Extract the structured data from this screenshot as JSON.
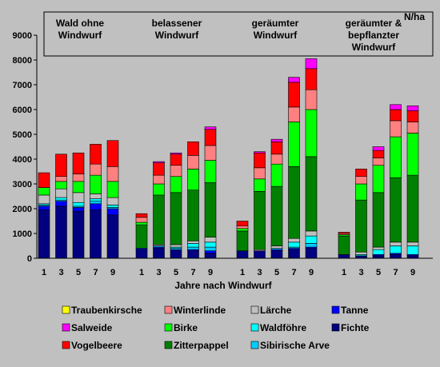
{
  "chart_data": {
    "type": "bar",
    "stacked": true,
    "ylabel": "N/ha",
    "xlabel": "Jahre nach Windwurf",
    "ylim": [
      0,
      9000
    ],
    "yticks": [
      0,
      1000,
      2000,
      3000,
      4000,
      5000,
      6000,
      7000,
      8000,
      9000
    ],
    "grid": false,
    "legend_position": "bottom",
    "groups": [
      {
        "label": [
          "Wald ohne",
          "Windwurf"
        ],
        "categories": [
          "1",
          "3",
          "5",
          "7",
          "9"
        ]
      },
      {
        "label": [
          "belassener",
          "Windwurf"
        ],
        "categories": [
          "1",
          "3",
          "5",
          "7",
          "9"
        ]
      },
      {
        "label": [
          "geräumter",
          "Windwurf"
        ],
        "categories": [
          "1",
          "3",
          "5",
          "7",
          "9"
        ]
      },
      {
        "label": [
          "geräumter &",
          "bepflanzter",
          "Windwurf"
        ],
        "categories": [
          "1",
          "3",
          "5",
          "7",
          "9"
        ]
      }
    ],
    "series": [
      {
        "name": "Fichte",
        "color": "#000080",
        "values": [
          [
            1950,
            2100,
            1900,
            1950,
            1750
          ],
          [
            350,
            400,
            300,
            300,
            200
          ],
          [
            300,
            300,
            300,
            350,
            400
          ],
          [
            150,
            100,
            100,
            150,
            100
          ]
        ]
      },
      {
        "name": "Tanne",
        "color": "#0000ff",
        "values": [
          [
            150,
            200,
            150,
            250,
            250
          ],
          [
            50,
            50,
            50,
            50,
            100
          ],
          [
            0,
            0,
            50,
            50,
            50
          ],
          [
            0,
            0,
            50,
            50,
            50
          ]
        ]
      },
      {
        "name": "Sibirische Arve",
        "color": "#00ccff",
        "values": [
          [
            50,
            50,
            50,
            100,
            50
          ],
          [
            0,
            50,
            50,
            100,
            150
          ],
          [
            0,
            0,
            50,
            50,
            150
          ],
          [
            0,
            0,
            0,
            0,
            0
          ]
        ]
      },
      {
        "name": "Waldföhre",
        "color": "#00ffff",
        "values": [
          [
            50,
            100,
            150,
            100,
            100
          ],
          [
            0,
            0,
            50,
            150,
            200
          ],
          [
            0,
            0,
            0,
            200,
            300
          ],
          [
            0,
            50,
            200,
            300,
            350
          ]
        ]
      },
      {
        "name": "Lärche",
        "color": "#c0c0c0",
        "values": [
          [
            350,
            350,
            400,
            200,
            300
          ],
          [
            0,
            50,
            100,
            100,
            200
          ],
          [
            0,
            50,
            100,
            150,
            200
          ],
          [
            0,
            100,
            100,
            150,
            150
          ]
        ]
      },
      {
        "name": "Zitterpappel",
        "color": "#008000",
        "values": [
          [
            0,
            0,
            0,
            0,
            0
          ],
          [
            950,
            2000,
            2100,
            2050,
            2200
          ],
          [
            800,
            2350,
            2400,
            2900,
            3000
          ],
          [
            750,
            2100,
            2200,
            2600,
            2700
          ]
        ]
      },
      {
        "name": "Birke",
        "color": "#00ff00",
        "values": [
          [
            300,
            300,
            450,
            750,
            650
          ],
          [
            100,
            450,
            650,
            850,
            900
          ],
          [
            100,
            500,
            900,
            1800,
            1900
          ],
          [
            50,
            650,
            1100,
            1650,
            1700
          ]
        ]
      },
      {
        "name": "Winterlinde",
        "color": "#ff8080",
        "values": [
          [
            0,
            200,
            300,
            450,
            600
          ],
          [
            200,
            350,
            450,
            550,
            600
          ],
          [
            100,
            450,
            400,
            600,
            800
          ],
          [
            50,
            300,
            300,
            650,
            450
          ]
        ]
      },
      {
        "name": "Vogelbeere",
        "color": "#ff0000",
        "values": [
          [
            600,
            900,
            850,
            800,
            1050
          ],
          [
            150,
            500,
            450,
            550,
            650
          ],
          [
            200,
            600,
            500,
            1000,
            850
          ],
          [
            50,
            300,
            300,
            450,
            450
          ]
        ]
      },
      {
        "name": "Salweide",
        "color": "#ff00ff",
        "values": [
          [
            0,
            0,
            0,
            0,
            0
          ],
          [
            0,
            50,
            50,
            0,
            100
          ],
          [
            0,
            50,
            100,
            200,
            400
          ],
          [
            0,
            0,
            150,
            200,
            200
          ]
        ]
      },
      {
        "name": "Traubenkirsche",
        "color": "#ffff00",
        "values": [
          [
            0,
            0,
            0,
            0,
            0
          ],
          [
            0,
            0,
            0,
            0,
            0
          ],
          [
            0,
            0,
            0,
            0,
            0
          ],
          [
            0,
            0,
            0,
            0,
            0
          ]
        ]
      }
    ],
    "legend_order": [
      "Traubenkirsche",
      "Winterlinde",
      "Lärche",
      "Tanne",
      "Salweide",
      "Birke",
      "Waldföhre",
      "Fichte",
      "Vogelbeere",
      "Zitterpappel",
      "Sibirische Arve"
    ]
  }
}
